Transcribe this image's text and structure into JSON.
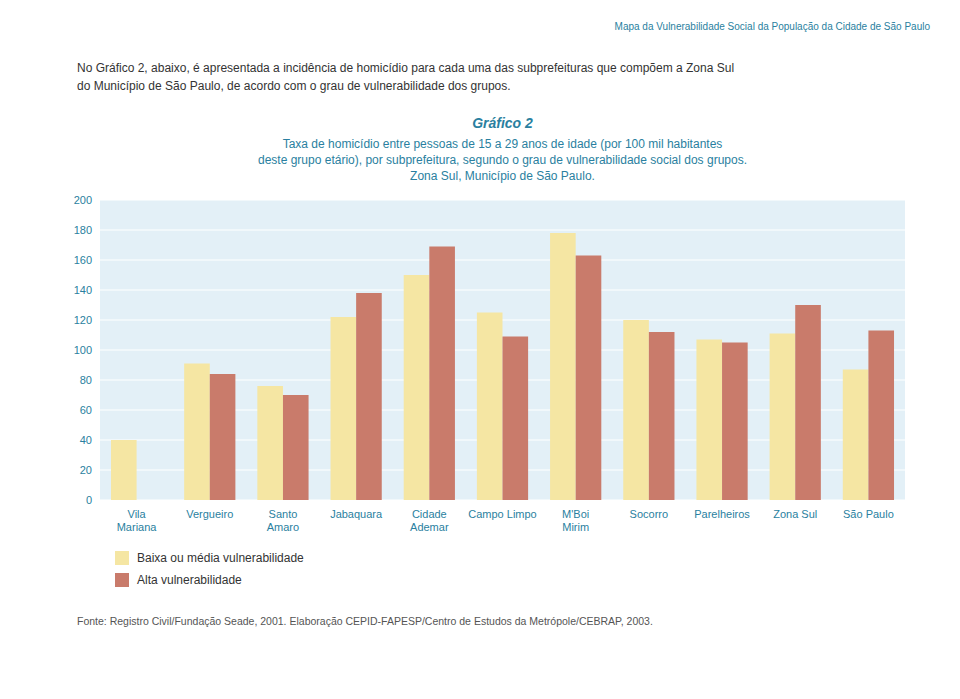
{
  "chart_data": {
    "type": "bar",
    "title": "Gráfico 2",
    "subtitle": "Taxa de homicídio entre pessoas de 15 a 29 anos de idade (por 100 mil habitantes\ndeste grupo etário), por subprefeitura, segundo o grau de vulnerabilidade social dos grupos.\nZona Sul, Município de São Paulo.",
    "annotations": [
      "Mapa da Vulnerabilidade Social da População da Cidade de São Paulo",
      "No Gráfico 2, abaixo, é apresentada a incidência de homicídio para cada uma das subprefeituras que compõem a Zona Sul",
      "do Município de São Paulo, de acordo com o grau de vulnerabilidade dos grupos.",
      "Fonte: Registro Civil/Fundação Seade, 2001. Elaboração CEPID-FAPESP/Centro de Estudos da Metrópole/CEBRAP, 2003."
    ],
    "categories": [
      "Vila\nMariana",
      "Vergueiro",
      "Santo\nAmaro",
      "Jabaquara",
      "Cidade\nAdemar",
      "Campo Limpo",
      "M'Boi\nMirim",
      "Socorro",
      "Parelheiros",
      "Zona Sul",
      "São Paulo"
    ],
    "series": [
      {
        "name": "Baixa ou média vulnerabilidade",
        "color": "#f5e6a3",
        "values": [
          40,
          91,
          76,
          122,
          150,
          125,
          178,
          120,
          107,
          111,
          87
        ]
      },
      {
        "name": "Alta vulnerabilidade",
        "color": "#c97b6b",
        "values": [
          null,
          84,
          70,
          138,
          169,
          109,
          163,
          112,
          105,
          130,
          113
        ]
      }
    ],
    "ylim": [
      0,
      200
    ],
    "yticks": [
      0,
      20,
      40,
      60,
      80,
      100,
      120,
      140,
      160,
      180,
      200
    ],
    "grid": true,
    "legend": "bottom"
  }
}
